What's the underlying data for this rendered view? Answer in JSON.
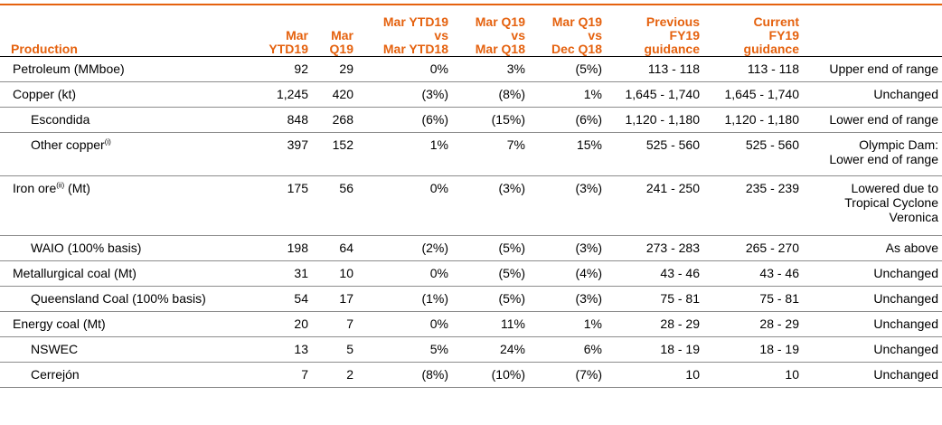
{
  "header": {
    "first": "Production",
    "cols": [
      [
        "Mar",
        "YTD19"
      ],
      [
        "Mar",
        "Q19"
      ],
      [
        "Mar YTD19",
        "vs",
        "Mar YTD18"
      ],
      [
        "Mar Q19",
        "vs",
        "Mar Q18"
      ],
      [
        "Mar Q19",
        "vs",
        "Dec Q18"
      ],
      [
        "Previous",
        "FY19",
        "guidance"
      ],
      [
        "Current",
        "FY19",
        "guidance"
      ]
    ]
  },
  "rows": [
    {
      "label": "Petroleum (MMboe)",
      "sup": "",
      "suffix": "",
      "sub": false,
      "cells": [
        "92",
        "29",
        "0%",
        "3%",
        "(5%)",
        "113 - 118",
        "113 - 118"
      ],
      "note": [
        "Upper end of range"
      ]
    },
    {
      "label": "Copper (kt)",
      "sup": "",
      "suffix": "",
      "sub": false,
      "cells": [
        "1,245",
        "420",
        "(3%)",
        "(8%)",
        "1%",
        "1,645 - 1,740",
        "1,645 - 1,740"
      ],
      "note": [
        "Unchanged"
      ]
    },
    {
      "label": "Escondida",
      "sup": "",
      "suffix": "",
      "sub": true,
      "cells": [
        "848",
        "268",
        "(6%)",
        "(15%)",
        "(6%)",
        "1,120 - 1,180",
        "1,120 - 1,180"
      ],
      "note": [
        "Lower end of range"
      ]
    },
    {
      "label": "Other copper",
      "sup": "(i)",
      "suffix": "",
      "sub": true,
      "cells": [
        "397",
        "152",
        "1%",
        "7%",
        "15%",
        "525 - 560",
        "525 - 560"
      ],
      "note": [
        "Olympic Dam:",
        "Lower end of range"
      ]
    },
    {
      "label": "Iron ore",
      "sup": "(ii)",
      "suffix": " (Mt)",
      "sub": false,
      "cells": [
        "175",
        "56",
        "0%",
        "(3%)",
        "(3%)",
        "241 - 250",
        "235 - 239"
      ],
      "note": [
        "Lowered due to",
        "Tropical Cyclone",
        "Veronica"
      ]
    },
    {
      "label": "WAIO (100% basis)",
      "sup": "",
      "suffix": "",
      "sub": true,
      "cells": [
        "198",
        "64",
        "(2%)",
        "(5%)",
        "(3%)",
        "273 - 283",
        "265 - 270"
      ],
      "note": [
        "As above"
      ]
    },
    {
      "label": "Metallurgical coal (Mt)",
      "sup": "",
      "suffix": "",
      "sub": false,
      "cells": [
        "31",
        "10",
        "0%",
        "(5%)",
        "(4%)",
        "43 - 46",
        "43 - 46"
      ],
      "note": [
        "Unchanged"
      ]
    },
    {
      "label": "Queensland Coal (100% basis)",
      "sup": "",
      "suffix": "",
      "sub": true,
      "cells": [
        "54",
        "17",
        "(1%)",
        "(5%)",
        "(3%)",
        "75 - 81",
        "75 - 81"
      ],
      "note": [
        "Unchanged"
      ]
    },
    {
      "label": "Energy coal (Mt)",
      "sup": "",
      "suffix": "",
      "sub": false,
      "cells": [
        "20",
        "7",
        "0%",
        "11%",
        "1%",
        "28 - 29",
        "28 - 29"
      ],
      "note": [
        "Unchanged"
      ]
    },
    {
      "label": "NSWEC",
      "sup": "",
      "suffix": "",
      "sub": true,
      "cells": [
        "13",
        "5",
        "5%",
        "24%",
        "6%",
        "18 - 19",
        "18 - 19"
      ],
      "note": [
        "Unchanged"
      ]
    },
    {
      "label": "Cerrejón",
      "sup": "",
      "suffix": "",
      "sub": true,
      "cells": [
        "7",
        "2",
        "(8%)",
        "(10%)",
        "(7%)",
        "10",
        "10"
      ],
      "note": [
        "Unchanged"
      ]
    }
  ],
  "colors": {
    "accent": "#e5620f",
    "rule": "#8c8c8c"
  }
}
